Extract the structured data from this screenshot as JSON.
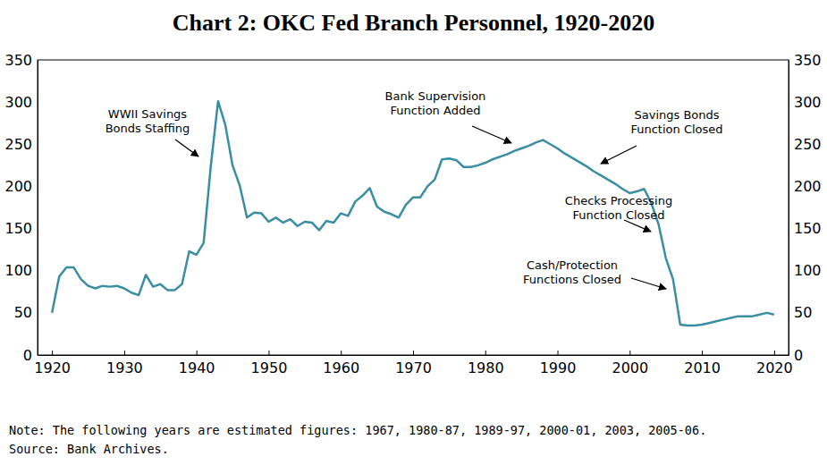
{
  "chart_data": {
    "type": "line",
    "title": "Chart 2: OKC Fed Branch Personnel, 1920-2020",
    "x": [
      1920,
      1921,
      1922,
      1923,
      1924,
      1925,
      1926,
      1927,
      1928,
      1929,
      1930,
      1931,
      1932,
      1933,
      1934,
      1935,
      1936,
      1937,
      1938,
      1939,
      1940,
      1941,
      1942,
      1943,
      1944,
      1945,
      1946,
      1947,
      1948,
      1949,
      1950,
      1951,
      1952,
      1953,
      1954,
      1955,
      1956,
      1957,
      1958,
      1959,
      1960,
      1961,
      1962,
      1963,
      1964,
      1965,
      1966,
      1967,
      1968,
      1969,
      1970,
      1971,
      1972,
      1973,
      1974,
      1975,
      1976,
      1977,
      1978,
      1979,
      1980,
      1981,
      1982,
      1983,
      1984,
      1985,
      1986,
      1987,
      1988,
      1989,
      1990,
      1991,
      1992,
      1993,
      1994,
      1995,
      1996,
      1997,
      1998,
      1999,
      2000,
      2001,
      2002,
      2003,
      2004,
      2005,
      2006,
      2007,
      2008,
      2009,
      2010,
      2011,
      2012,
      2013,
      2014,
      2015,
      2016,
      2017,
      2018,
      2019,
      2020
    ],
    "values": [
      50,
      93,
      104,
      104,
      90,
      82,
      79,
      82,
      81,
      82,
      79,
      74,
      71,
      95,
      81,
      84,
      77,
      77,
      84,
      123,
      119,
      133,
      225,
      301,
      273,
      225,
      201,
      163,
      169,
      168,
      158,
      163,
      157,
      161,
      153,
      158,
      157,
      148,
      159,
      157,
      168,
      165,
      182,
      189,
      198,
      176,
      170,
      167,
      163,
      178,
      187,
      187,
      200,
      208,
      232,
      233,
      231,
      223,
      223,
      225,
      228,
      232,
      235,
      238,
      242,
      245,
      248,
      252,
      255,
      250,
      245,
      239,
      234,
      229,
      224,
      218,
      213,
      208,
      203,
      197,
      192,
      194,
      197,
      180,
      155,
      115,
      90,
      36,
      35,
      35,
      36,
      38,
      40,
      42,
      44,
      46,
      46,
      46,
      48,
      50,
      48
    ],
    "color": "#3a8ea3",
    "xlim": [
      1918,
      2022
    ],
    "xticks": [
      1920,
      1930,
      1940,
      1950,
      1960,
      1970,
      1980,
      1990,
      2000,
      2010,
      2020
    ],
    "ylim": [
      0,
      350
    ],
    "yticks": [
      0,
      50,
      100,
      150,
      200,
      250,
      300,
      350
    ],
    "y2lim": [
      0,
      350
    ],
    "y2ticks": [
      0,
      50,
      100,
      150,
      200,
      250,
      300,
      350
    ],
    "grid": false,
    "annotations": [
      [
        "WWII Savings",
        "Bonds Staffing"
      ],
      [
        "Bank Supervision",
        "Function Added"
      ],
      [
        "Savings Bonds",
        "Function Closed"
      ],
      [
        "Checks Processing",
        "Function Closed"
      ],
      [
        "Cash/Protection",
        "Functions Closed"
      ]
    ],
    "note": "Note: The following years are estimated figures: 1967, 1980-87, 1989-97, 2000-01, 2003, 2005-06.",
    "source": "Source: Bank Archives."
  }
}
